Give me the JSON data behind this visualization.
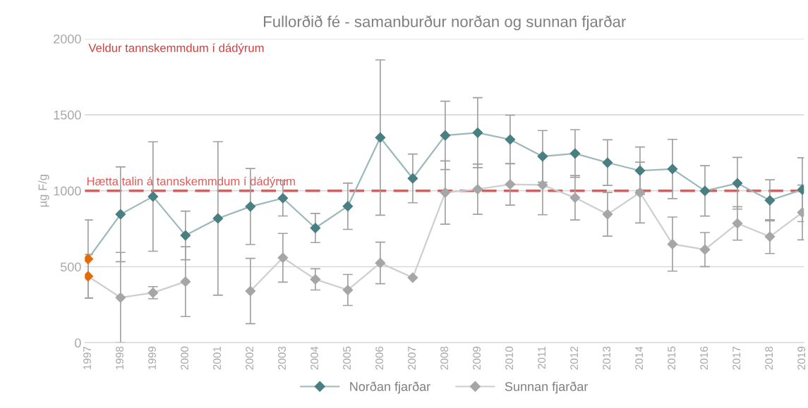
{
  "chart_data": {
    "type": "line",
    "title": "Fullorðið fé - samanburður norðan og sunnan fjarðar",
    "ylabel": "µg F/g",
    "categories": [
      "1997",
      "1998",
      "1999",
      "2000",
      "2001",
      "2002",
      "2003",
      "2004",
      "2005",
      "2006",
      "2007",
      "2008",
      "2009",
      "2010",
      "2011",
      "2012",
      "2013",
      "2014",
      "2015",
      "2016",
      "2017",
      "2018",
      "2019"
    ],
    "series": [
      {
        "name": "Norðan fjarðar",
        "color": "#4a7f82",
        "colors": [
          "#e36c09",
          "#4a7f82",
          "#4a7f82",
          "#4a7f82",
          "#4a7f82",
          "#4a7f82",
          "#4a7f82",
          "#4a7f82",
          "#4a7f82",
          "#4a7f82",
          "#4a7f82",
          "#4a7f82",
          "#4a7f82",
          "#4a7f82",
          "#4a7f82",
          "#4a7f82",
          "#4a7f82",
          "#4a7f82",
          "#4a7f82",
          "#4a7f82",
          "#4a7f82",
          "#4a7f82",
          "#4a7f82"
        ],
        "values": [
          551,
          845,
          962,
          706,
          818,
          896,
          951,
          755,
          898,
          1350,
          1081,
          1364,
          1382,
          1337,
          1226,
          1245,
          1185,
          1132,
          1143,
          999,
          1049,
          937,
          1007
        ],
        "errors": [
          257,
          312,
          360,
          160,
          505,
          250,
          117,
          96,
          152,
          511,
          160,
          225,
          230,
          160,
          170,
          157,
          150,
          156,
          195,
          166,
          170,
          135,
          210
        ]
      },
      {
        "name": "Sunnan fjarðar",
        "color": "#a6a6a8",
        "colors": [
          "#e36c09",
          "#a6a6a8",
          "#a6a6a8",
          "#a6a6a8",
          "#a6a6a8",
          "#a6a6a8",
          "#a6a6a8",
          "#a6a6a8",
          "#a6a6a8",
          "#a6a6a8",
          "#a6a6a8",
          "#a6a6a8",
          "#a6a6a8",
          "#a6a6a8",
          "#a6a6a8",
          "#a6a6a8",
          "#a6a6a8",
          "#a6a6a8",
          "#a6a6a8",
          "#a6a6a8",
          "#a6a6a8",
          "#a6a6a8",
          "#a6a6a8"
        ],
        "values": [
          437,
          297,
          329,
          402,
          null,
          340,
          559,
          417,
          347,
          525,
          428,
          988,
          1010,
          1042,
          1038,
          954,
          845,
          988,
          649,
          613,
          785,
          698,
          857
        ],
        "errors": [
          144,
          297,
          40,
          230,
          null,
          215,
          160,
          70,
          102,
          137,
          null,
          208,
          165,
          137,
          196,
          146,
          144,
          200,
          178,
          112,
          110,
          111,
          180
        ]
      }
    ],
    "ylim": [
      0,
      2000
    ],
    "yticks": [
      0,
      500,
      1000,
      1500,
      2000
    ],
    "grid": "y",
    "legend": "bottom",
    "marker": "diamond",
    "line_style": "solid",
    "ref_lines": [
      {
        "axis": "y",
        "value": 1000,
        "label": "Hætta talin á tannskemmdum í dádýrum",
        "color": "#e05a5a",
        "line_style": "dashed"
      }
    ],
    "annotations": [
      "Veldur tannskemmdum í dádýrum"
    ]
  }
}
